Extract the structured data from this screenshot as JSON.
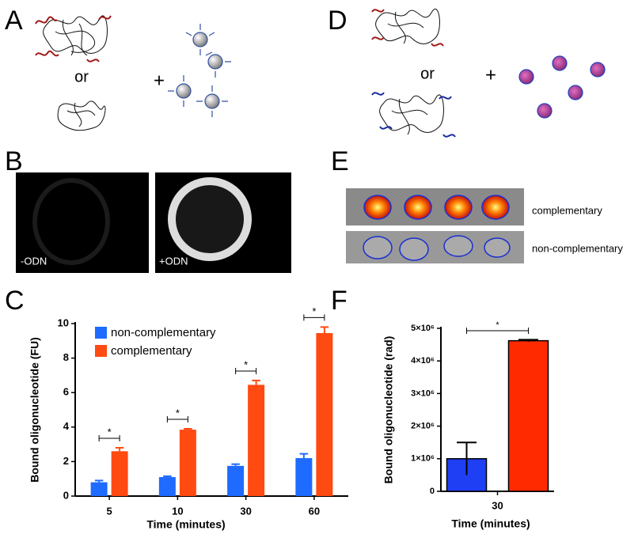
{
  "panels": {
    "labels": [
      "A",
      "B",
      "C",
      "D",
      "E",
      "F"
    ]
  },
  "panel_a": {
    "or": "or",
    "plus": "+"
  },
  "panel_b": {
    "left": "-ODN",
    "right": "+ODN"
  },
  "panel_d": {
    "or": "or",
    "plus": "+"
  },
  "panel_e": {
    "rows": [
      "complementary",
      "non-complementary"
    ]
  },
  "chart_data": [
    {
      "type": "bar",
      "ylabel": "Bound oligonucleotide (FU)",
      "xlabel": "Time (minutes)",
      "categories": [
        "5",
        "10",
        "30",
        "60"
      ],
      "series": [
        {
          "name": "non-complementary",
          "color": "#1f6bff",
          "values": [
            0.8,
            1.1,
            1.75,
            2.2
          ],
          "errors": [
            0.1,
            0.05,
            0.1,
            0.25
          ]
        },
        {
          "name": "complementary",
          "color": "#ff4a12",
          "values": [
            2.6,
            3.85,
            6.45,
            9.45
          ],
          "errors": [
            0.2,
            0.05,
            0.25,
            0.35
          ]
        }
      ],
      "ylim": [
        0,
        10
      ],
      "yticks": [
        0,
        2,
        4,
        6,
        8,
        10
      ],
      "legend": "upper left",
      "annotations": [
        "*",
        "*",
        "*",
        "*"
      ]
    },
    {
      "type": "bar",
      "ylabel": "Bound oligonucleotide (rad)",
      "xlabel": "Time (minutes)",
      "categories": [
        "30"
      ],
      "series": [
        {
          "color": "#1f3ff5",
          "values": [
            1000000
          ],
          "errors": [
            500000
          ]
        },
        {
          "color": "#ff2a00",
          "values": [
            4620000
          ],
          "errors": [
            30000
          ]
        }
      ],
      "ylim": [
        0,
        5000000
      ],
      "yticks": [
        0,
        {
          "value": 1000000,
          "label": "1×10⁶"
        },
        {
          "value": 2000000,
          "label": "2×10⁶"
        },
        {
          "value": 3000000,
          "label": "3×10⁶"
        },
        {
          "value": 4000000,
          "label": "4×10⁶"
        },
        {
          "value": 5000000,
          "label": "5×10⁶"
        }
      ],
      "annotations": [
        "*"
      ]
    }
  ]
}
